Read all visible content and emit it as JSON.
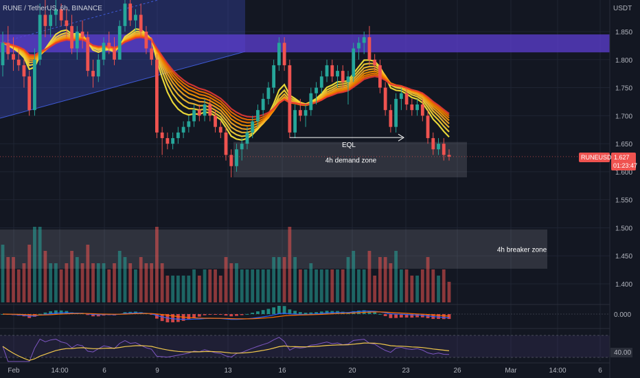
{
  "chart_data": {
    "type": "candlestick",
    "title": "RUNE / TetherUS, 6h, BINANCE",
    "symbol_tag": "RUNEUSDT",
    "currency_label": "USDT",
    "last_price": "1.627",
    "countdown": "01:23:47",
    "ylim": [
      1.37,
      1.905
    ],
    "y_ticks": [
      "1.850",
      "1.800",
      "1.750",
      "1.700",
      "1.650",
      "1.600",
      "1.550",
      "1.500",
      "1.450",
      "1.400"
    ],
    "x_ticks": [
      "Feb",
      "14:00",
      "6",
      "9",
      "13",
      "16",
      "20",
      "23",
      "26",
      "Mar",
      "14:00",
      "6"
    ],
    "candles": [
      [
        1.79,
        1.85,
        1.77,
        1.83
      ],
      [
        1.83,
        1.86,
        1.8,
        1.81
      ],
      [
        1.81,
        1.84,
        1.78,
        1.8
      ],
      [
        1.8,
        1.82,
        1.78,
        1.79
      ],
      [
        1.79,
        1.8,
        1.75,
        1.77
      ],
      [
        1.77,
        1.78,
        1.7,
        1.71
      ],
      [
        1.71,
        1.82,
        1.7,
        1.8
      ],
      [
        1.8,
        1.9,
        1.79,
        1.88
      ],
      [
        1.88,
        1.91,
        1.84,
        1.86
      ],
      [
        1.86,
        1.89,
        1.84,
        1.88
      ],
      [
        1.88,
        1.91,
        1.86,
        1.89
      ],
      [
        1.89,
        1.9,
        1.86,
        1.87
      ],
      [
        1.87,
        1.89,
        1.84,
        1.86
      ],
      [
        1.86,
        1.88,
        1.81,
        1.82
      ],
      [
        1.82,
        1.86,
        1.8,
        1.85
      ],
      [
        1.85,
        1.87,
        1.82,
        1.84
      ],
      [
        1.84,
        1.85,
        1.77,
        1.78
      ],
      [
        1.78,
        1.8,
        1.75,
        1.77
      ],
      [
        1.77,
        1.81,
        1.76,
        1.8
      ],
      [
        1.8,
        1.84,
        1.79,
        1.83
      ],
      [
        1.83,
        1.85,
        1.81,
        1.82
      ],
      [
        1.82,
        1.84,
        1.79,
        1.8
      ],
      [
        1.8,
        1.87,
        1.8,
        1.86
      ],
      [
        1.86,
        1.91,
        1.85,
        1.9
      ],
      [
        1.9,
        1.91,
        1.86,
        1.87
      ],
      [
        1.87,
        1.89,
        1.85,
        1.88
      ],
      [
        1.88,
        1.9,
        1.84,
        1.85
      ],
      [
        1.85,
        1.86,
        1.81,
        1.82
      ],
      [
        1.82,
        1.84,
        1.79,
        1.8
      ],
      [
        1.8,
        1.81,
        1.66,
        1.67
      ],
      [
        1.67,
        1.68,
        1.63,
        1.66
      ],
      [
        1.66,
        1.67,
        1.64,
        1.65
      ],
      [
        1.65,
        1.67,
        1.64,
        1.66
      ],
      [
        1.66,
        1.68,
        1.65,
        1.67
      ],
      [
        1.67,
        1.69,
        1.66,
        1.68
      ],
      [
        1.68,
        1.7,
        1.67,
        1.69
      ],
      [
        1.69,
        1.72,
        1.68,
        1.71
      ],
      [
        1.71,
        1.72,
        1.69,
        1.7
      ],
      [
        1.7,
        1.73,
        1.69,
        1.72
      ],
      [
        1.72,
        1.73,
        1.69,
        1.7
      ],
      [
        1.7,
        1.71,
        1.67,
        1.68
      ],
      [
        1.68,
        1.69,
        1.66,
        1.67
      ],
      [
        1.67,
        1.68,
        1.62,
        1.63
      ],
      [
        1.63,
        1.64,
        1.59,
        1.61
      ],
      [
        1.61,
        1.65,
        1.6,
        1.64
      ],
      [
        1.64,
        1.66,
        1.62,
        1.65
      ],
      [
        1.65,
        1.68,
        1.64,
        1.67
      ],
      [
        1.67,
        1.7,
        1.66,
        1.69
      ],
      [
        1.69,
        1.72,
        1.68,
        1.71
      ],
      [
        1.71,
        1.74,
        1.7,
        1.73
      ],
      [
        1.73,
        1.76,
        1.72,
        1.75
      ],
      [
        1.75,
        1.8,
        1.74,
        1.79
      ],
      [
        1.79,
        1.84,
        1.78,
        1.83
      ],
      [
        1.83,
        1.84,
        1.78,
        1.79
      ],
      [
        1.79,
        1.8,
        1.66,
        1.67
      ],
      [
        1.67,
        1.72,
        1.66,
        1.71
      ],
      [
        1.71,
        1.73,
        1.69,
        1.7
      ],
      [
        1.7,
        1.72,
        1.68,
        1.71
      ],
      [
        1.71,
        1.75,
        1.7,
        1.74
      ],
      [
        1.74,
        1.76,
        1.72,
        1.75
      ],
      [
        1.75,
        1.78,
        1.74,
        1.77
      ],
      [
        1.77,
        1.8,
        1.76,
        1.79
      ],
      [
        1.79,
        1.8,
        1.76,
        1.77
      ],
      [
        1.77,
        1.79,
        1.75,
        1.78
      ],
      [
        1.78,
        1.79,
        1.75,
        1.76
      ],
      [
        1.76,
        1.78,
        1.72,
        1.77
      ],
      [
        1.77,
        1.83,
        1.76,
        1.82
      ],
      [
        1.82,
        1.84,
        1.8,
        1.83
      ],
      [
        1.83,
        1.85,
        1.81,
        1.84
      ],
      [
        1.84,
        1.86,
        1.79,
        1.8
      ],
      [
        1.8,
        1.81,
        1.78,
        1.79
      ],
      [
        1.79,
        1.8,
        1.74,
        1.75
      ],
      [
        1.75,
        1.76,
        1.7,
        1.71
      ],
      [
        1.71,
        1.72,
        1.67,
        1.68
      ],
      [
        1.68,
        1.74,
        1.67,
        1.73
      ],
      [
        1.73,
        1.75,
        1.71,
        1.74
      ],
      [
        1.74,
        1.75,
        1.71,
        1.72
      ],
      [
        1.72,
        1.73,
        1.7,
        1.71
      ],
      [
        1.71,
        1.73,
        1.7,
        1.72
      ],
      [
        1.72,
        1.73,
        1.69,
        1.7
      ],
      [
        1.7,
        1.71,
        1.65,
        1.66
      ],
      [
        1.66,
        1.67,
        1.63,
        1.64
      ],
      [
        1.64,
        1.66,
        1.63,
        1.65
      ],
      [
        1.65,
        1.66,
        1.62,
        1.63
      ],
      [
        1.63,
        1.64,
        1.62,
        1.627
      ]
    ],
    "zones": [
      {
        "name": "demand",
        "label": "4h demand zone",
        "y1": 1.59,
        "y2": 1.653
      },
      {
        "name": "breaker",
        "label": "4h breaker zone",
        "y1": 1.427,
        "y2": 1.497
      }
    ],
    "eql": {
      "label": "EQL",
      "price": 1.661
    },
    "macd_label": "0.000",
    "rsi_label": "40.00",
    "colors": {
      "up": "#26a69a",
      "down": "#ef5350",
      "bg": "#131722",
      "purple": "#5d3fd3"
    }
  }
}
